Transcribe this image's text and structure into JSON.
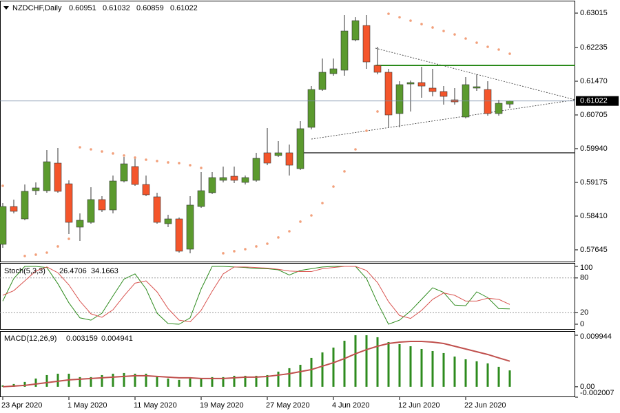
{
  "chart_data": [
    {
      "type": "candlestick",
      "title": "NZDCHF,Daily",
      "categories": [
        "23 Apr 2020",
        null,
        null,
        null,
        null,
        null,
        "1 May 2020",
        null,
        null,
        null,
        null,
        null,
        "11 May 2020",
        null,
        null,
        null,
        null,
        null,
        "19 May 2020",
        null,
        null,
        null,
        null,
        null,
        "27 May 2020",
        null,
        null,
        null,
        null,
        null,
        "4 Jun 2020",
        null,
        null,
        null,
        null,
        null,
        "12 Jun 2020",
        null,
        null,
        null,
        null,
        null,
        "22 Jun 2020",
        null,
        null,
        null,
        null
      ],
      "open": [
        0.5777,
        0.58628,
        0.58347,
        0.58987,
        0.58987,
        0.59612,
        0.59143,
        0.5816,
        0.58269,
        0.58785,
        0.5855,
        0.59206,
        0.59534,
        0.59128,
        0.58847,
        0.58238,
        0.58347,
        0.5766,
        0.58628,
        0.58941,
        0.59222,
        0.59315,
        0.59175,
        0.59222,
        0.59846,
        0.59784,
        0.59846,
        0.59487,
        0.60424,
        0.61282,
        0.61642,
        0.6172,
        0.62407,
        0.62734,
        0.61829,
        0.61673,
        0.60736,
        0.61407,
        0.61439,
        0.61314,
        0.61236,
        0.61048,
        0.60658,
        0.61314,
        0.61282,
        0.60736,
        0.60951
      ],
      "high": [
        0.58706,
        0.58785,
        0.59128,
        0.59175,
        0.59909,
        0.59955,
        0.59222,
        0.58472,
        0.59066,
        0.58863,
        0.59331,
        0.59752,
        0.59752,
        0.59331,
        0.58941,
        0.58441,
        0.58379,
        0.58863,
        0.59409,
        0.59409,
        0.59534,
        0.59534,
        0.59331,
        0.59846,
        0.60408,
        0.60112,
        0.60033,
        0.60564,
        0.6136,
        0.61985,
        0.61985,
        0.62969,
        0.62922,
        0.62969,
        0.6225,
        0.61751,
        0.6147,
        0.61485,
        0.61798,
        0.61751,
        0.6136,
        0.61314,
        0.61563,
        0.61626,
        0.6147,
        0.61048,
        0.61032
      ],
      "low": [
        0.57692,
        0.58472,
        0.58316,
        0.58894,
        0.58941,
        0.58941,
        0.58004,
        0.57848,
        0.58238,
        0.58504,
        0.58472,
        0.59175,
        0.59097,
        0.58863,
        0.58238,
        0.5816,
        0.57582,
        0.57567,
        0.58597,
        0.58909,
        0.59175,
        0.59159,
        0.59128,
        0.5919,
        0.59565,
        0.59752,
        0.59331,
        0.59456,
        0.60377,
        0.61251,
        0.61595,
        0.61595,
        0.62375,
        0.61751,
        0.61626,
        0.60424,
        0.60424,
        0.60783,
        0.61095,
        0.61126,
        0.60939,
        0.60939,
        0.60627,
        0.61251,
        0.60689,
        0.60689,
        0.60859
      ],
      "close": [
        0.58628,
        0.58519,
        0.58972,
        0.5905,
        0.59643,
        0.58972,
        0.58269,
        0.58316,
        0.58785,
        0.5855,
        0.59206,
        0.59596,
        0.59128,
        0.58894,
        0.58269,
        0.58347,
        0.57614,
        0.5866,
        0.58987,
        0.59284,
        0.59284,
        0.59222,
        0.59284,
        0.59721,
        0.59612,
        0.59846,
        0.59565,
        0.60393,
        0.61282,
        0.61673,
        0.61751,
        0.62609,
        0.62844,
        0.61907,
        0.61673,
        0.60705,
        0.61392,
        0.61439,
        0.6136,
        0.61236,
        0.61126,
        0.61001,
        0.61392,
        0.61345,
        0.60736,
        0.6097,
        0.61022
      ],
      "up_color": "#5b9a2e",
      "down_color": "#f4552b",
      "overlay": {
        "type": "dots",
        "color": "#f2a07b",
        "values": [
          0.59097,
          null,
          0.57505,
          0.57536,
          0.57582,
          0.57723,
          0.57895,
          0.59971,
          0.59924,
          0.59877,
          0.59831,
          0.59784,
          0.59737,
          0.5969,
          0.59659,
          0.59628,
          0.59612,
          0.59565,
          0.59503,
          null,
          0.57567,
          0.57614,
          0.5766,
          0.57723,
          0.57785,
          0.57926,
          0.58066,
          0.58285,
          0.58425,
          0.58706,
          0.59081,
          0.59425,
          0.59924,
          0.60346,
          0.60783,
          0.63,
          0.62922,
          0.62844,
          0.62766,
          0.62688,
          0.62609,
          0.62531,
          0.62438,
          0.62344,
          0.6225,
          0.62188,
          0.62094
        ]
      },
      "ylim": [
        0.57379,
        0.63281
      ],
      "yticks": [
        0.63015,
        0.62235,
        {
          "value": 0.6147,
          "label": "0.61470"
        },
        0.60705,
        {
          "value": 0.5994,
          "label": "0.59940"
        },
        0.59175,
        {
          "value": 0.5841,
          "label": "0.58410"
        },
        0.57645
      ]
    },
    {
      "type": "line",
      "title": "Stoch(5,3,3)",
      "series": [
        {
          "color": "#2e8b1e",
          "values": [
            40,
            79,
            100,
            100,
            98,
            70,
            37,
            11,
            7,
            19,
            49,
            78,
            87,
            61,
            19,
            1,
            0,
            11,
            61,
            100,
            100,
            99,
            98,
            96,
            96,
            94,
            85,
            93,
            96,
            99,
            100,
            100,
            100,
            79,
            37,
            0,
            7,
            23,
            43,
            63,
            55,
            33,
            32,
            56,
            46,
            27,
            26.4706
          ]
        },
        {
          "color": "#d9534f",
          "values": [
            50,
            58,
            75,
            92,
            99,
            89,
            68,
            40,
            18,
            12,
            25,
            49,
            71,
            75,
            56,
            27,
            7,
            4,
            24,
            57,
            87,
            99,
            99,
            98,
            97,
            95,
            92,
            91,
            91,
            96,
            98,
            100,
            100,
            93,
            72,
            39,
            15,
            10,
            24,
            43,
            54,
            50,
            40,
            40,
            45,
            43,
            34.1663
          ]
        }
      ],
      "levels": [
        80,
        20
      ],
      "ylim": [
        -8.33,
        104.76
      ],
      "yticks": [
        100,
        80,
        20,
        0
      ]
    },
    {
      "type": "bar",
      "title": "MACD(12,26,9)",
      "series": [
        {
          "type": "bar",
          "color": "#2e8b1e",
          "values": [
            0.00027,
            0.00053,
            0.00093,
            0.00159,
            0.00225,
            0.00252,
            0.00252,
            0.00186,
            0.00186,
            0.00225,
            0.00252,
            0.00265,
            0.00252,
            0.00252,
            0.00199,
            0.00159,
            0.00133,
            0.00159,
            0.00159,
            0.00186,
            0.00186,
            0.00212,
            0.00212,
            0.00212,
            0.00225,
            0.00292,
            0.00358,
            0.00424,
            0.00557,
            0.00663,
            0.00756,
            0.00888,
            0.00994,
            0.00994,
            0.00955,
            0.00862,
            0.00822,
            0.00782,
            0.00729,
            0.00689,
            0.0065,
            0.00583,
            0.0053,
            0.00491,
            0.00451,
            0.00385,
            0.003159
          ]
        },
        {
          "type": "line",
          "color": "#c0504d",
          "values": [
            0,
            0.00013,
            0.00027,
            0.00053,
            0.0008,
            0.00106,
            0.00133,
            0.00146,
            0.00159,
            0.00172,
            0.00186,
            0.00199,
            0.00212,
            0.00212,
            0.00199,
            0.00186,
            0.00172,
            0.00172,
            0.00159,
            0.00159,
            0.00159,
            0.00172,
            0.00186,
            0.00186,
            0.00199,
            0.00225,
            0.00252,
            0.00292,
            0.00331,
            0.00398,
            0.00464,
            0.00544,
            0.00636,
            0.00716,
            0.00782,
            0.00835,
            0.00862,
            0.00875,
            0.00875,
            0.00862,
            0.00835,
            0.00782,
            0.00729,
            0.00676,
            0.00623,
            0.00557,
            0.004941
          ]
        }
      ],
      "ylim": [
        -0.002007,
        0.010475
      ],
      "yticks": [
        0.009944,
        {
          "value": 0,
          "label": "0.00"
        },
        -0.002007
      ]
    }
  ]
}
